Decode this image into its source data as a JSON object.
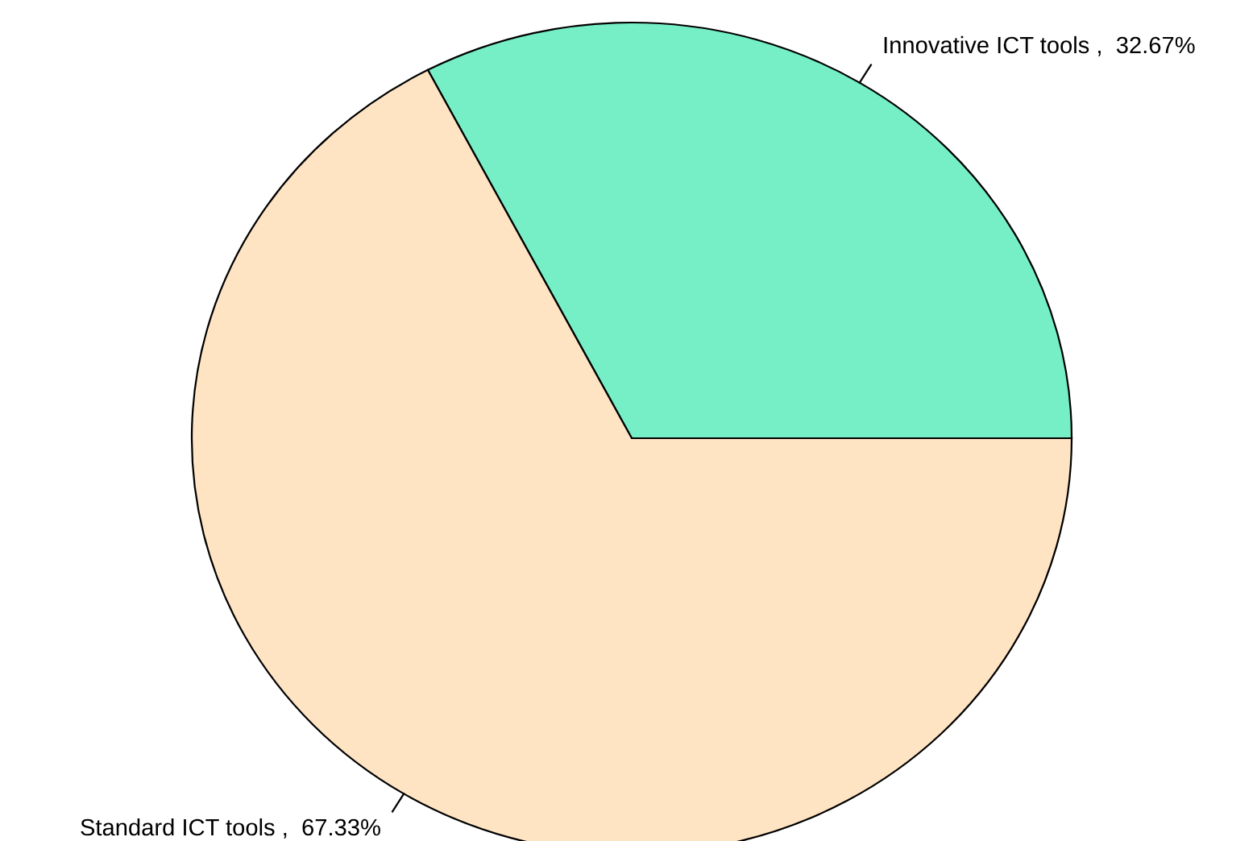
{
  "chart_data": {
    "type": "pie",
    "categories": [
      "Innovative ICT tools ,  32.67%",
      "Standard ICT tools ,  67.33%"
    ],
    "values": [
      32.67,
      67.33
    ],
    "colors": [
      "#76eec6",
      "#ffe4c4"
    ]
  }
}
